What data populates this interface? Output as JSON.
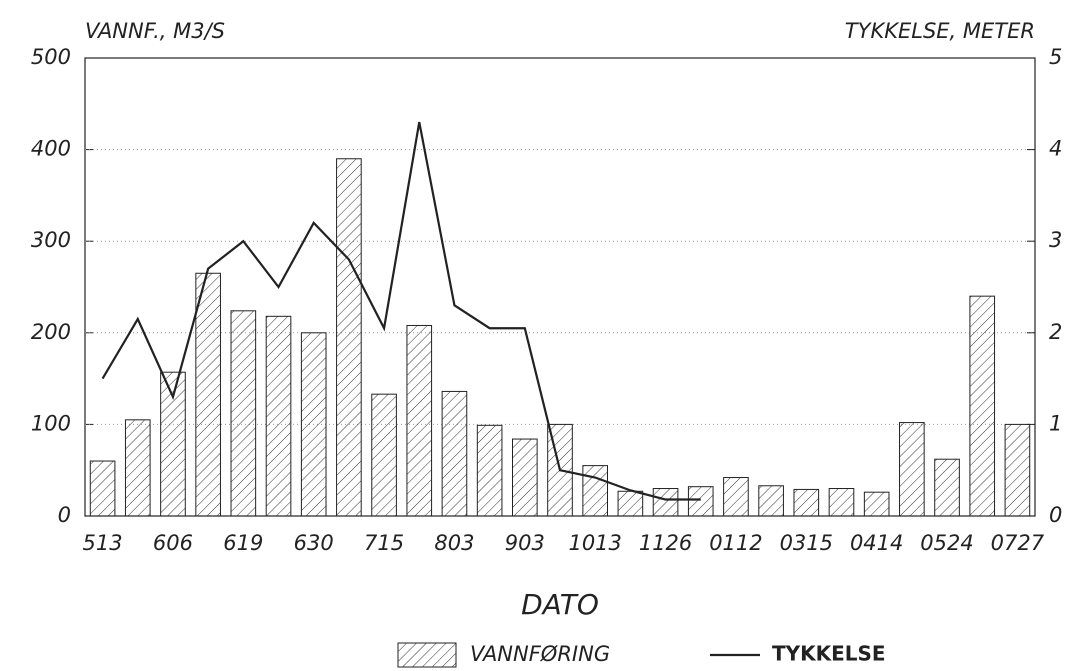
{
  "chart_data": {
    "type": "bar",
    "y_label": "VANNF., M3/S",
    "y2_label": "TYKKELSE, METER",
    "x_label": "DATO",
    "categories": [
      "513",
      null,
      "606",
      null,
      "619",
      null,
      "630",
      null,
      "715",
      null,
      "803",
      null,
      "903",
      null,
      "1013",
      null,
      "1126",
      null,
      "0112",
      null,
      "0315",
      null,
      "0414",
      null,
      "0524",
      null,
      "0727"
    ],
    "series": [
      {
        "name": "VANNFØRING",
        "type": "bar",
        "color": "#222",
        "values": [
          60,
          105,
          157,
          265,
          224,
          218,
          200,
          390,
          133,
          208,
          136,
          99,
          84,
          100,
          55,
          27,
          30,
          32,
          42,
          33,
          29,
          30,
          26,
          102,
          62,
          240,
          100
        ]
      },
      {
        "name": "TYKKELSE",
        "type": "line",
        "axis": "y2",
        "color": "#222",
        "values": [
          1.5,
          2.15,
          1.3,
          2.7,
          3.0,
          2.5,
          3.2,
          2.8,
          2.05,
          4.3,
          2.3,
          2.05,
          2.05,
          0.5,
          0.42,
          0.28,
          0.18,
          0.18,
          null,
          null,
          null,
          null,
          null,
          null,
          null,
          null,
          null
        ]
      }
    ],
    "ylim": [
      0,
      500
    ],
    "yticks": [
      0,
      100,
      200,
      300,
      400,
      500
    ],
    "y2lim": [
      0,
      5
    ],
    "y2ticks": [
      0,
      1,
      2,
      3,
      4,
      5
    ],
    "grid": true
  }
}
